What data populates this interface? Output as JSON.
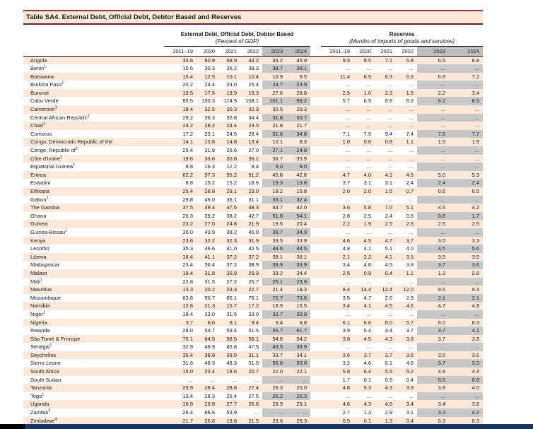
{
  "title": "Table SA4. External Debt, Official Debt, Debtor Based and Reserves",
  "groups": [
    {
      "label": "External Debt, Official Debt, Debtor Based",
      "sublabel": "(Percent of GDP)"
    },
    {
      "label": "Reserves",
      "sublabel": "(Months of imports of goods and services)"
    }
  ],
  "year_columns": [
    "2011–19",
    "2020",
    "2021",
    "2022",
    "2023",
    "2024"
  ],
  "highlighted_years": [
    "2023",
    "2024"
  ],
  "ellipsis": "...",
  "colors": {
    "title_band": "#FDE9D9",
    "row_stripe": "#FDE9D9",
    "shade_header": "#BFBFBF",
    "shade_body": "#C8C8C8",
    "rule_red": "#953735",
    "rule_dark": "#622423",
    "bottom_bar": "#17375E"
  },
  "rows": [
    {
      "country": "Angola",
      "sup": "",
      "debt": [
        "33.6",
        "90.9",
        "68.9",
        "44.2",
        "46.2",
        "45.9"
      ],
      "reserves": [
        "9.3",
        "9.5",
        "7.1",
        "6.8",
        "6.5",
        "6.8"
      ]
    },
    {
      "country": "Benin",
      "sup": "1",
      "debt": [
        "15.6",
        "30.3",
        "35.2",
        "38.3",
        "38.7",
        "38.1"
      ],
      "reserves": [
        "...",
        "...",
        "...",
        "...",
        "...",
        "..."
      ]
    },
    {
      "country": "Botswana",
      "sup": "",
      "debt": [
        "15.4",
        "12.5",
        "10.1",
        "10.4",
        "10.9",
        "9.5"
      ],
      "reserves": [
        "11.4",
        "6.5",
        "6.3",
        "6.6",
        "6.8",
        "7.2"
      ]
    },
    {
      "country": "Burkina Faso",
      "sup": "1",
      "debt": [
        "20.2",
        "24.4",
        "24.0",
        "25.4",
        "24.7",
        "23.9"
      ],
      "reserves": [
        "...",
        "...",
        "...",
        "...",
        "...",
        "..."
      ]
    },
    {
      "country": "Burundi",
      "sup": "",
      "debt": [
        "19.5",
        "17.5",
        "19.9",
        "19.3",
        "27.6",
        "28.8"
      ],
      "reserves": [
        "2.5",
        "1.0",
        "2.3",
        "1.5",
        "2.2",
        "3.4"
      ]
    },
    {
      "country": "Cabo Verde",
      "sup": "",
      "debt": [
        "85.5",
        "130.3",
        "114.9",
        "108.1",
        "101.1",
        "98.2"
      ],
      "reserves": [
        "5.7",
        "6.9",
        "6.8",
        "6.2",
        "6.2",
        "6.5"
      ]
    },
    {
      "country": "Cameroon",
      "sup": "2",
      "debt": [
        "18.4",
        "32.5",
        "30.3",
        "32.9",
        "30.5",
        "29.3"
      ],
      "reserves": [
        "...",
        "...",
        "...",
        "...",
        "...",
        "..."
      ]
    },
    {
      "country": "Central African Republic",
      "sup": "2",
      "debt": [
        "29.2",
        "36.3",
        "32.8",
        "34.4",
        "31.8",
        "30.7"
      ],
      "reserves": [
        "...",
        "...",
        "...",
        "...",
        "...",
        "..."
      ]
    },
    {
      "country": "Chad",
      "sup": "2",
      "debt": [
        "24.2",
        "28.2",
        "24.4",
        "23.0",
        "21.8",
        "21.7"
      ],
      "reserves": [
        "...",
        "...",
        "...",
        "...",
        "...",
        "..."
      ]
    },
    {
      "country": "Comoros",
      "sup": "",
      "debt": [
        "17.2",
        "23.1",
        "24.5",
        "28.4",
        "31.6",
        "34.8"
      ],
      "reserves": [
        "7.1",
        "7.9",
        "9.4",
        "7.4",
        "7.5",
        "7.7"
      ]
    },
    {
      "country": "Congo, Democratic Republic of the",
      "sup": "",
      "debt": [
        "14.1",
        "13.8",
        "14.8",
        "13.4",
        "10.1",
        "8.3"
      ],
      "reserves": [
        "1.0",
        "0.6",
        "0.8",
        "1.1",
        "1.5",
        "1.9"
      ]
    },
    {
      "country": "Congo, Republic of",
      "sup": "2",
      "debt": [
        "25.4",
        "31.9",
        "26.6",
        "27.0",
        "27.1",
        "24.9"
      ],
      "reserves": [
        "...",
        "...",
        "...",
        "...",
        "...",
        "..."
      ]
    },
    {
      "country": "Côte d'Ivoire",
      "sup": "1",
      "debt": [
        "19.6",
        "33.6",
        "30.8",
        "36.1",
        "36.7",
        "35.9"
      ],
      "reserves": [
        "...",
        "...",
        "...",
        "...",
        "...",
        "..."
      ]
    },
    {
      "country": "Equatorial Guinea",
      "sup": "2",
      "debt": [
        "8.8",
        "16.3",
        "12.2",
        "8.4",
        "9.0",
        "9.0"
      ],
      "reserves": [
        "...",
        "...",
        "...",
        "...",
        "...",
        "..."
      ]
    },
    {
      "country": "Eritrea",
      "sup": "",
      "debt": [
        "62.2",
        "57.3",
        "55.2",
        "51.2",
        "45.8",
        "42.8"
      ],
      "reserves": [
        "4.7",
        "4.0",
        "4.1",
        "4.5",
        "5.0",
        "5.3"
      ]
    },
    {
      "country": "Eswatini",
      "sup": "",
      "debt": [
        "8.8",
        "15.2",
        "15.2",
        "18.6",
        "19.3",
        "19.8"
      ],
      "reserves": [
        "3.7",
        "3.1",
        "3.1",
        "2.4",
        "2.4",
        "2.4"
      ]
    },
    {
      "country": "Ethiopia",
      "sup": "",
      "debt": [
        "25.4",
        "28.8",
        "29.1",
        "23.0",
        "18.2",
        "15.8"
      ],
      "reserves": [
        "2.0",
        "2.0",
        "1.5",
        "0.7",
        "0.6",
        "0.5"
      ]
    },
    {
      "country": "Gabon",
      "sup": "2",
      "debt": [
        "29.8",
        "49.0",
        "36.1",
        "31.1",
        "33.1",
        "32.4"
      ],
      "reserves": [
        "...",
        "...",
        "...",
        "...",
        "...",
        "..."
      ]
    },
    {
      "country": "The Gambia",
      "sup": "",
      "debt": [
        "37.5",
        "49.4",
        "47.5",
        "48.3",
        "44.7",
        "42.0"
      ],
      "reserves": [
        "3.6",
        "5.8",
        "7.0",
        "5.1",
        "4.5",
        "4.2"
      ]
    },
    {
      "country": "Ghana",
      "sup": "",
      "debt": [
        "26.3",
        "39.2",
        "38.2",
        "42.7",
        "51.8",
        "54.1"
      ],
      "reserves": [
        "2.8",
        "2.5",
        "2.4",
        "0.6",
        "0.8",
        "1.7"
      ]
    },
    {
      "country": "Guinea",
      "sup": "",
      "debt": [
        "23.2",
        "27.0",
        "24.8",
        "21.9",
        "19.5",
        "20.4"
      ],
      "reserves": [
        "2.2",
        "1.9",
        "2.5",
        "2.5",
        "2.5",
        "2.5"
      ]
    },
    {
      "country": "Guinea-Bissau",
      "sup": "1",
      "debt": [
        "30.0",
        "43.9",
        "38.2",
        "40.0",
        "36.7",
        "34.9"
      ],
      "reserves": [
        "...",
        "...",
        "...",
        "...",
        "...",
        "..."
      ]
    },
    {
      "country": "Kenya",
      "sup": "",
      "debt": [
        "23.6",
        "32.2",
        "32.3",
        "31.9",
        "33.5",
        "33.9"
      ],
      "reserves": [
        "4.6",
        "4.5",
        "4.7",
        "3.7",
        "3.0",
        "3.3"
      ]
    },
    {
      "country": "Lesotho",
      "sup": "",
      "debt": [
        "35.3",
        "46.6",
        "41.0",
        "42.5",
        "44.6",
        "44.5"
      ],
      "reserves": [
        "4.8",
        "4.1",
        "5.1",
        "4.0",
        "4.5",
        "5.6"
      ]
    },
    {
      "country": "Liberia",
      "sup": "",
      "debt": [
        "18.4",
        "41.1",
        "37.2",
        "37.2",
        "38.1",
        "38.1"
      ],
      "reserves": [
        "2.1",
        "2.2",
        "4.1",
        "3.5",
        "3.5",
        "3.5"
      ]
    },
    {
      "country": "Madagascar",
      "sup": "",
      "debt": [
        "23.4",
        "36.4",
        "37.2",
        "38.9",
        "39.9",
        "39.9"
      ],
      "reserves": [
        "3.4",
        "4.8",
        "4.5",
        "3.8",
        "3.7",
        "3.6"
      ]
    },
    {
      "country": "Malawi",
      "sup": "",
      "debt": [
        "19.4",
        "31.8",
        "30.9",
        "29.9",
        "33.2",
        "34.4"
      ],
      "reserves": [
        "2.5",
        "0.9",
        "0.4",
        "1.1",
        "1.3",
        "2.8"
      ]
    },
    {
      "country": "Mali",
      "sup": "1",
      "debt": [
        "22.8",
        "31.5",
        "27.2",
        "26.7",
        "25.1",
        "23.9"
      ],
      "reserves": [
        "...",
        "...",
        "...",
        "...",
        "...",
        "..."
      ]
    },
    {
      "country": "Mauritius",
      "sup": "",
      "debt": [
        "13.3",
        "20.2",
        "23.3",
        "22.7",
        "21.4",
        "19.3"
      ],
      "reserves": [
        "8.4",
        "14.4",
        "12.4",
        "12.0",
        "9.6",
        "9.4"
      ]
    },
    {
      "country": "Mozambique",
      "sup": "",
      "debt": [
        "63.8",
        "90.7",
        "85.1",
        "76.1",
        "72.7",
        "73.6"
      ],
      "reserves": [
        "3.5",
        "4.7",
        "2.6",
        "2.9",
        "2.1",
        "2.1"
      ]
    },
    {
      "country": "Namibia",
      "sup": "",
      "debt": [
        "12.6",
        "21.3",
        "15.7",
        "17.2",
        "16.9",
        "15.5"
      ],
      "reserves": [
        "3.4",
        "4.1",
        "4.5",
        "4.6",
        "4.7",
        "4.8"
      ]
    },
    {
      "country": "Niger",
      "sup": "1",
      "debt": [
        "18.4",
        "33.0",
        "31.5",
        "33.0",
        "32.7",
        "30.9"
      ],
      "reserves": [
        "...",
        "...",
        "...",
        "...",
        "...",
        "..."
      ]
    },
    {
      "country": "Nigeria",
      "sup": "",
      "debt": [
        "3.7",
        "8.0",
        "9.1",
        "9.4",
        "9.4",
        "9.8"
      ],
      "reserves": [
        "6.1",
        "6.6",
        "6.0",
        "5.7",
        "6.0",
        "6.3"
      ]
    },
    {
      "country": "Rwanda",
      "sup": "",
      "debt": [
        "28.0",
        "54.7",
        "53.4",
        "51.5",
        "55.7",
        "61.7"
      ],
      "reserves": [
        "3.9",
        "5.4",
        "4.4",
        "3.7",
        "3.7",
        "4.1"
      ]
    },
    {
      "country": "São Tomé & Príncipe",
      "sup": "",
      "debt": [
        "75.1",
        "64.9",
        "58.5",
        "58.1",
        "54.8",
        "54.2"
      ],
      "reserves": [
        "3.8",
        "4.5",
        "4.3",
        "3.8",
        "3.7",
        "3.8"
      ]
    },
    {
      "country": "Senegal",
      "sup": "1",
      "debt": [
        "32.9",
        "48.9",
        "45.8",
        "47.5",
        "43.5",
        "39.9"
      ],
      "reserves": [
        "...",
        "...",
        "...",
        "...",
        "...",
        "..."
      ]
    },
    {
      "country": "Seychelles",
      "sup": "",
      "debt": [
        "35.4",
        "38.8",
        "39.5",
        "31.1",
        "33.7",
        "34.1"
      ],
      "reserves": [
        "3.6",
        "3.7",
        "3.7",
        "3.6",
        "3.5",
        "3.6"
      ]
    },
    {
      "country": "Sierra Leone",
      "sup": "",
      "debt": [
        "31.6",
        "48.3",
        "48.3",
        "51.0",
        "56.8",
        "53.0"
      ],
      "reserves": [
        "3.2",
        "4.6",
        "6.1",
        "4.6",
        "3.7",
        "3.3"
      ]
    },
    {
      "country": "South Africa",
      "sup": "",
      "debt": [
        "15.0",
        "23.4",
        "18.6",
        "20.7",
        "22.0",
        "22.1"
      ],
      "reserves": [
        "5.8",
        "6.4",
        "5.5",
        "5.2",
        "4.8",
        "4.4"
      ]
    },
    {
      "country": "South Sudan",
      "sup": "",
      "debt": [
        "...",
        "...",
        "...",
        "...",
        "...",
        "..."
      ],
      "reserves": [
        "1.7",
        "0.1",
        "0.9",
        "0.4",
        "0.5",
        "0.9"
      ]
    },
    {
      "country": "Tanzania",
      "sup": "",
      "debt": [
        "25.9",
        "28.4",
        "28.8",
        "27.4",
        "26.3",
        "25.0"
      ],
      "reserves": [
        "4.8",
        "5.3",
        "4.3",
        "3.9",
        "3.8",
        "4.0"
      ]
    },
    {
      "country": "Togo",
      "sup": "1",
      "debt": [
        "13.4",
        "28.3",
        "25.4",
        "27.5",
        "26.2",
        "26.3"
      ],
      "reserves": [
        "...",
        "...",
        "...",
        "...",
        "...",
        "..."
      ]
    },
    {
      "country": "Uganda",
      "sup": "",
      "debt": [
        "16.9",
        "29.8",
        "27.7",
        "26.8",
        "28.9",
        "29.1"
      ],
      "reserves": [
        "4.6",
        "4.3",
        "4.6",
        "3.4",
        "3.4",
        "3.8"
      ]
    },
    {
      "country": "Zambia",
      "sup": "3",
      "debt": [
        "26.4",
        "66.6",
        "53.9",
        "...",
        "...",
        "..."
      ],
      "reserves": [
        "2.7",
        "1.3",
        "2.9",
        "3.1",
        "3.3",
        "4.2"
      ]
    },
    {
      "country": "Zimbabwe",
      "sup": "4",
      "debt": [
        "21.7",
        "26.6",
        "19.8",
        "21.5",
        "23.6",
        "26.3"
      ],
      "reserves": [
        "0.5",
        "0.1",
        "1.3",
        "0.4",
        "0.3",
        "0.3"
      ]
    }
  ]
}
